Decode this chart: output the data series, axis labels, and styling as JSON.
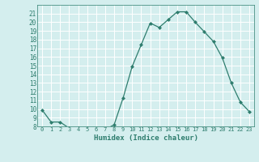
{
  "x": [
    0,
    1,
    2,
    3,
    4,
    5,
    6,
    7,
    8,
    9,
    10,
    11,
    12,
    13,
    14,
    15,
    16,
    17,
    18,
    19,
    20,
    21,
    22,
    23
  ],
  "y": [
    9.9,
    8.5,
    8.5,
    7.8,
    7.8,
    7.8,
    7.7,
    7.6,
    8.2,
    11.3,
    14.9,
    17.4,
    19.9,
    19.4,
    20.3,
    21.2,
    21.2,
    20.0,
    18.9,
    17.8,
    15.9,
    13.0,
    10.8,
    9.7
  ],
  "xlabel": "Humidex (Indice chaleur)",
  "ylim": [
    8,
    22
  ],
  "xlim": [
    -0.5,
    23.5
  ],
  "yticks": [
    8,
    9,
    10,
    11,
    12,
    13,
    14,
    15,
    16,
    17,
    18,
    19,
    20,
    21
  ],
  "xticks": [
    0,
    1,
    2,
    3,
    4,
    5,
    6,
    7,
    8,
    9,
    10,
    11,
    12,
    13,
    14,
    15,
    16,
    17,
    18,
    19,
    20,
    21,
    22,
    23
  ],
  "line_color": "#2e7d6e",
  "marker_color": "#2e7d6e",
  "bg_color": "#d4eeee",
  "grid_color": "#c4e0e0",
  "tick_color": "#2e7d6e",
  "xlabel_color": "#2e7d6e"
}
